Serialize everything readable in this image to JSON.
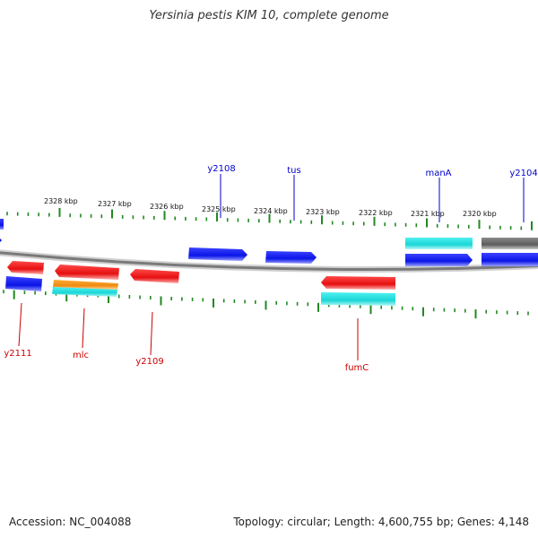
{
  "title": "Yersinia pestis KIM 10, complete genome",
  "footer": {
    "accession": "Accession: NC_004088",
    "topology": "Topology: circular; Length: 4,600,755 bp; Genes: 4,148"
  },
  "colors": {
    "forward_label": "#0000cc",
    "reverse_label": "#cc0000",
    "tick": "#228822",
    "backbone": "#888888",
    "blue": "#0a14e6",
    "red": "#e60f0f",
    "cyan": "#1ad6d6",
    "orange": "#ee8a0f",
    "gray": "#6b6b6b"
  },
  "ticks": [
    {
      "label": "2328 kbp"
    },
    {
      "label": "2327 kbp"
    },
    {
      "label": "2326 kbp"
    },
    {
      "label": "2325 kbp"
    },
    {
      "label": "2324 kbp"
    },
    {
      "label": "2323 kbp"
    },
    {
      "label": "2322 kbp"
    },
    {
      "label": "2321 kbp"
    },
    {
      "label": "2320 kbp"
    }
  ],
  "features": [
    {
      "name": "y2108",
      "strand": "forward",
      "color": "blue"
    },
    {
      "name": "tus",
      "strand": "forward",
      "color": "blue"
    },
    {
      "name": "manA",
      "strand": "forward",
      "color": "blue"
    },
    {
      "name": "y2104",
      "strand": "forward",
      "color": "blue"
    },
    {
      "name": "y2111",
      "strand": "reverse",
      "color": "red"
    },
    {
      "name": "mlc",
      "strand": "reverse",
      "color": "red"
    },
    {
      "name": "y2109",
      "strand": "reverse",
      "color": "red"
    },
    {
      "name": "fumC",
      "strand": "reverse",
      "color": "red"
    }
  ]
}
